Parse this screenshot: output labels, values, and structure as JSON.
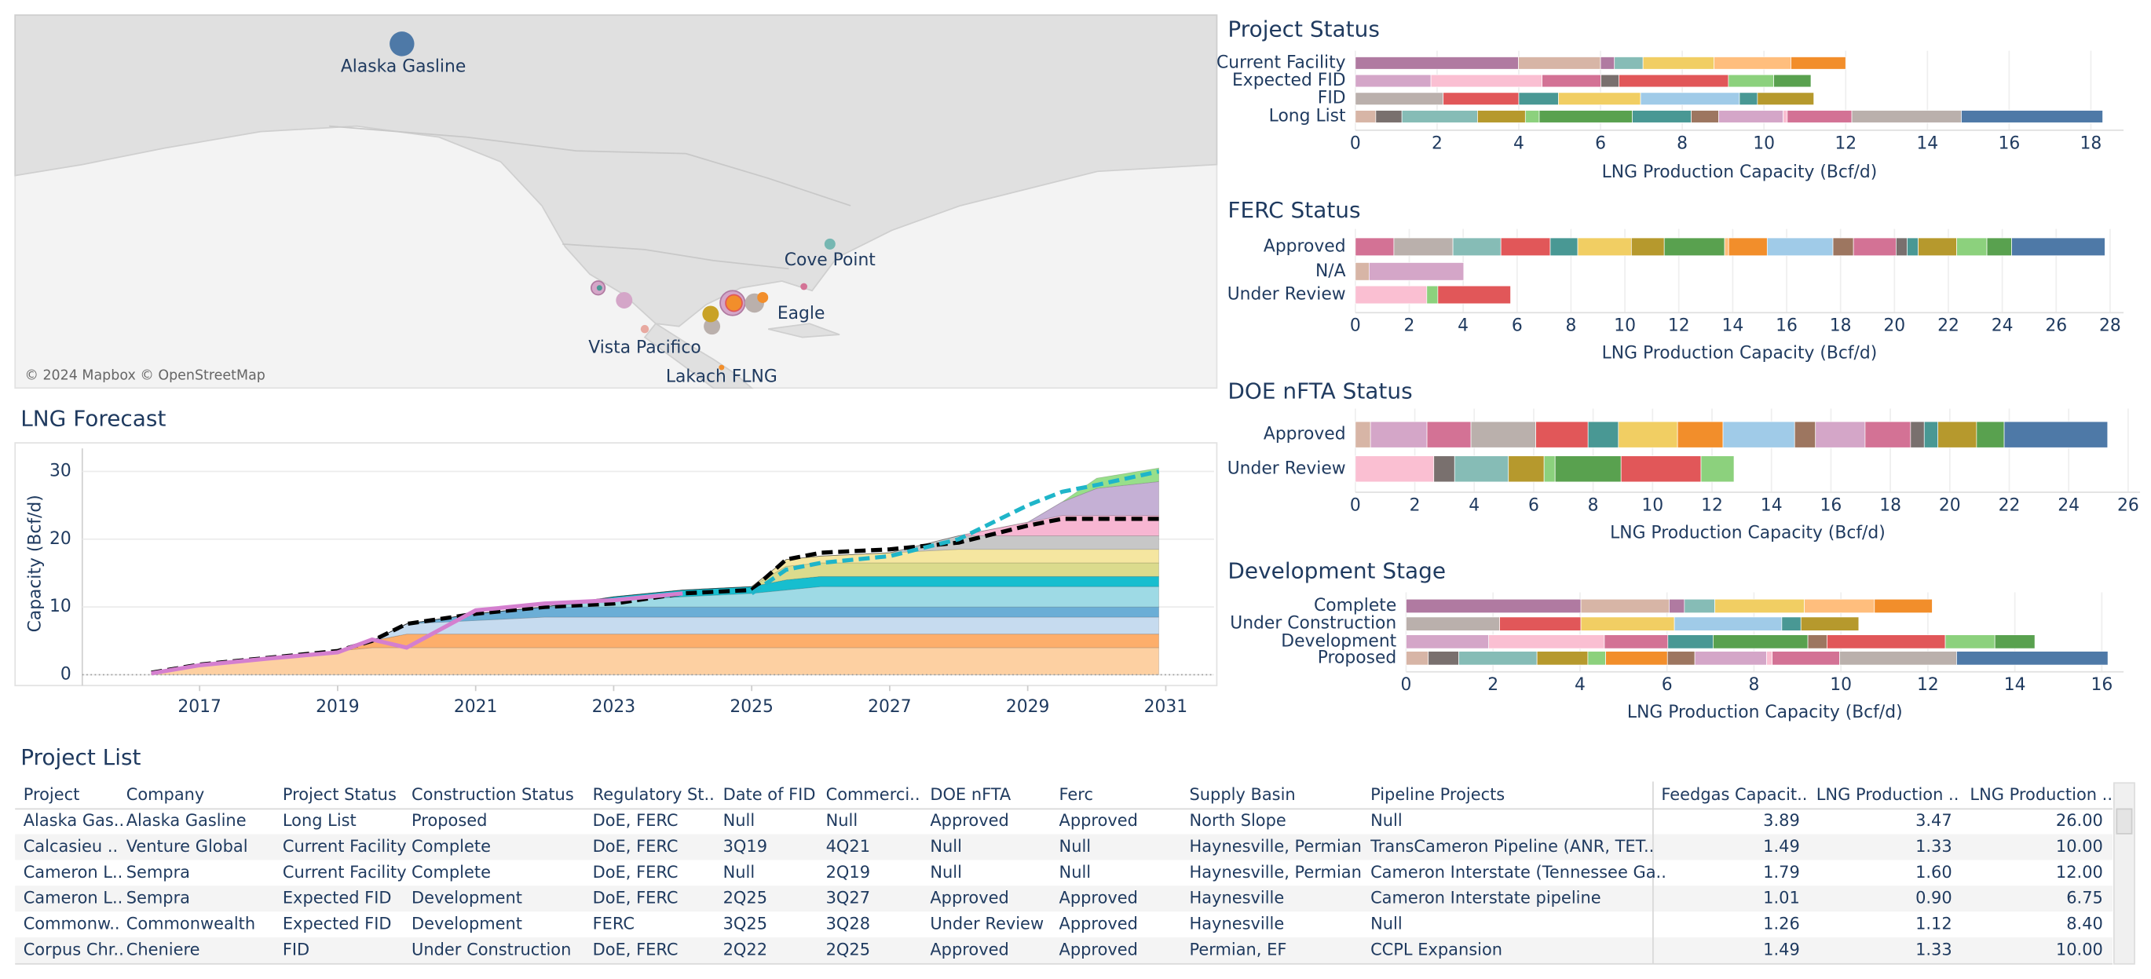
{
  "map": {
    "labels": [
      "Alaska Gasline",
      "Cove Point",
      "Eagle",
      "Vista Pacifico",
      "Lakach FLNG"
    ],
    "attribution": "© 2024 Mapbox © OpenStreetMap"
  },
  "chart_data": [
    {
      "type": "area",
      "title": "LNG Forecast",
      "y_label": "Capacity (Bcf/d)",
      "grid": true,
      "x": [
        2016.3,
        2017,
        2018,
        2019,
        2019.5,
        2020,
        2021,
        2022,
        2023,
        2024,
        2025,
        2025.5,
        2026,
        2027,
        2028,
        2029,
        2029.5,
        2030,
        2030.9
      ],
      "xlim": [
        2015.3,
        2031.7
      ],
      "xticks": [
        2017,
        2019,
        2021,
        2023,
        2025,
        2027,
        2029,
        2031
      ],
      "ylim": [
        -1.6,
        33.4
      ],
      "yticks": [
        0,
        10,
        20,
        30
      ],
      "series": [
        {
          "color": "#fdd0a2",
          "values": [
            0.3,
            1.5,
            2.5,
            3.5,
            4,
            4,
            4,
            4,
            4,
            4,
            4,
            4,
            4,
            4,
            4,
            4,
            4,
            4,
            4
          ]
        },
        {
          "color": "#fdae6b",
          "values": [
            0,
            0,
            0,
            0,
            1,
            2,
            2,
            2,
            2,
            2,
            2,
            2,
            2,
            2,
            2,
            2,
            2,
            2,
            2
          ]
        },
        {
          "color": "#c6dbef",
          "values": [
            0,
            0,
            0,
            0,
            0,
            1.5,
            2,
            2.5,
            2.5,
            2.5,
            2.5,
            2.5,
            2.5,
            2.5,
            2.5,
            2.5,
            2.5,
            2.5,
            2.5
          ]
        },
        {
          "color": "#6baed6",
          "values": [
            0,
            0,
            0,
            0,
            0,
            0,
            1,
            1.5,
            1.5,
            1.5,
            1.5,
            1.5,
            1.5,
            1.5,
            1.5,
            1.5,
            1.5,
            1.5,
            1.5
          ]
        },
        {
          "color": "#9edae5",
          "values": [
            0,
            0,
            0,
            0,
            0,
            0,
            0,
            0,
            1,
            1.5,
            2,
            2.5,
            3,
            3,
            3,
            3,
            3,
            3,
            3
          ]
        },
        {
          "color": "#17becf",
          "values": [
            0,
            0,
            0,
            0,
            0,
            0,
            0,
            0,
            0.5,
            1,
            1,
            1.5,
            1.5,
            1.5,
            1.5,
            1.5,
            1.5,
            1.5,
            1.5
          ]
        },
        {
          "color": "#dbdb8d",
          "values": [
            0,
            0,
            0,
            0,
            0,
            0,
            0,
            0,
            0,
            0,
            0,
            2,
            2,
            2,
            2,
            2,
            2,
            2,
            2
          ]
        },
        {
          "color": "#f5e6a0",
          "values": [
            0,
            0,
            0,
            0,
            0,
            0,
            0,
            0,
            0,
            0,
            0,
            1,
            1,
            1.5,
            2,
            2,
            2,
            2,
            2
          ]
        },
        {
          "color": "#c7c7c7",
          "values": [
            0,
            0,
            0,
            0,
            0,
            0,
            0,
            0,
            0,
            0,
            0,
            0,
            0,
            0,
            2,
            2,
            2,
            2,
            2
          ]
        },
        {
          "color": "#f7b6d2",
          "values": [
            0,
            0,
            0,
            0,
            0,
            0,
            0,
            0,
            0,
            0,
            0,
            0,
            0,
            0,
            0,
            2,
            3,
            3,
            3
          ]
        },
        {
          "color": "#c5b0d5",
          "values": [
            0,
            0,
            0,
            0,
            0,
            0,
            0,
            0,
            0,
            0,
            0,
            0,
            0,
            0,
            0,
            0,
            2,
            4,
            5
          ]
        },
        {
          "color": "#98df8a",
          "values": [
            0,
            0,
            0,
            0,
            0,
            0,
            0,
            0,
            0,
            0,
            0,
            0,
            0,
            0,
            0,
            0,
            0,
            1.5,
            2
          ]
        }
      ],
      "lines": [
        {
          "color": "#000000",
          "dash": true,
          "values": [
            0.3,
            1.5,
            2.5,
            3.5,
            5,
            7.5,
            9,
            10,
            10.5,
            12,
            12.5,
            17,
            18,
            18.5,
            19.5,
            22,
            23,
            23,
            23
          ]
        },
        {
          "color": "#1fb5c9",
          "dash": true,
          "values": [
            null,
            null,
            null,
            null,
            null,
            null,
            null,
            null,
            null,
            null,
            12,
            15.5,
            16.5,
            17.5,
            20,
            25,
            27,
            28,
            30
          ]
        },
        {
          "color": "#d47fcf",
          "dash": false,
          "values": [
            0.2,
            1.4,
            2.4,
            3.3,
            5.2,
            4,
            9.5,
            10.5,
            11,
            12,
            null,
            null,
            null,
            null,
            null,
            null,
            null,
            null,
            null
          ]
        }
      ]
    },
    {
      "type": "stacked_hbar",
      "title": "Project Status",
      "x_label": "LNG Production Capacity (Bcf/d)",
      "grid": true,
      "categories": [
        "Current Facility",
        "Expected FID",
        "FID",
        "Long List"
      ],
      "xlim": [
        0,
        18.8
      ],
      "xticks": [
        0,
        2,
        4,
        6,
        8,
        10,
        12,
        14,
        16,
        18
      ],
      "values": [
        [
          3.99,
          2.01,
          0.34,
          0.7,
          1.74,
          1.88,
          1.34
        ],
        [
          1.85,
          2.72,
          1.44,
          0.44,
          2.68,
          1.11,
          0.91
        ],
        [
          2.15,
          1.85,
          0.97,
          2.01,
          2.42,
          0.44,
          1.38
        ],
        [
          0.5,
          0.64,
          1.85,
          1.17,
          0.34,
          2.28,
          1.44,
          0.67,
          1.58,
          0.1,
          1.58,
          2.68,
          3.46
        ]
      ],
      "colors": [
        [
          "#b07aa1",
          "#d7b5a6",
          "#b07aa1",
          "#86bcb6",
          "#f1ce63",
          "#ffbe7d",
          "#f28e2b"
        ],
        [
          "#d4a6c8",
          "#fabfd2",
          "#d37295",
          "#79706e",
          "#e15759",
          "#8cd17d",
          "#59a14f"
        ],
        [
          "#bab0ac",
          "#e15759",
          "#499894",
          "#f1ce63",
          "#a0cbe8",
          "#499894",
          "#b6992d"
        ],
        [
          "#d7b5a6",
          "#79706e",
          "#86bcb6",
          "#b6992d",
          "#8cd17d",
          "#59a14f",
          "#499894",
          "#9d7660",
          "#d4a6c8",
          "#fabfd2",
          "#d37295",
          "#bab0ac",
          "#4e79a7"
        ]
      ]
    },
    {
      "type": "stacked_hbar",
      "title": "FERC Status",
      "x_label": "LNG Production Capacity (Bcf/d)",
      "grid": true,
      "categories": [
        "Approved",
        "N/A",
        "Under Review"
      ],
      "xlim": [
        0,
        28.5
      ],
      "xticks": [
        0,
        2,
        4,
        6,
        8,
        10,
        12,
        14,
        16,
        18,
        20,
        22,
        24,
        26,
        28
      ],
      "values": [
        [
          1.43,
          2.19,
          1.78,
          1.83,
          1.02,
          1.99,
          1.22,
          2.24,
          0.15,
          1.43,
          2.44,
          0.76,
          1.58,
          0.41,
          0.41,
          1.43,
          1.12,
          0.92,
          3.46
        ],
        [
          0.51,
          3.51
        ],
        [
          2.65,
          0.41,
          2.7
        ]
      ],
      "colors": [
        [
          "#d37295",
          "#bab0ac",
          "#86bcb6",
          "#e15759",
          "#499894",
          "#f1ce63",
          "#b6992d",
          "#59a14f",
          "#ffbe7d",
          "#f28e2b",
          "#a0cbe8",
          "#9d7660",
          "#d37295",
          "#79706e",
          "#499894",
          "#b6992d",
          "#8cd17d",
          "#59a14f",
          "#4e79a7"
        ],
        [
          "#d7b5a6",
          "#d4a6c8"
        ],
        [
          "#fabfd2",
          "#8cd17d",
          "#e15759"
        ]
      ]
    },
    {
      "type": "stacked_hbar",
      "title": "DOE nFTA Status",
      "x_label": "LNG Production Capacity (Bcf/d)",
      "grid": true,
      "categories": [
        "Approved",
        "Under Review"
      ],
      "xlim": [
        0,
        26.4
      ],
      "xticks": [
        0,
        2,
        4,
        6,
        8,
        10,
        12,
        14,
        16,
        18,
        20,
        22,
        24,
        26
      ],
      "values": [
        [
          0.51,
          1.9,
          1.48,
          2.18,
          1.76,
          1.02,
          1.99,
          1.53,
          2.41,
          0.7,
          1.67,
          1.53,
          0.46,
          0.46,
          1.3,
          0.93,
          3.48
        ],
        [
          2.64,
          0.7,
          1.81,
          1.2,
          0.37,
          2.22,
          2.69,
          1.11
        ]
      ],
      "colors": [
        [
          "#d7b5a6",
          "#d4a6c8",
          "#d37295",
          "#bab0ac",
          "#e15759",
          "#499894",
          "#f1ce63",
          "#f28e2b",
          "#a0cbe8",
          "#9d7660",
          "#d4a6c8",
          "#d37295",
          "#79706e",
          "#499894",
          "#b6992d",
          "#59a14f",
          "#4e79a7"
        ],
        [
          "#fabfd2",
          "#79706e",
          "#86bcb6",
          "#b6992d",
          "#8cd17d",
          "#59a14f",
          "#e15759",
          "#8cd17d"
        ]
      ]
    },
    {
      "type": "stacked_hbar",
      "title": "Development Stage",
      "x_label": "LNG Production Capacity (Bcf/d)",
      "grid": true,
      "categories": [
        "Complete",
        "Under Construction",
        "Development",
        "Proposed"
      ],
      "xlim": [
        0,
        16.5
      ],
      "xticks": [
        0,
        2,
        4,
        6,
        8,
        10,
        12,
        14,
        16
      ],
      "values": [
        [
          4.02,
          2.03,
          0.35,
          0.7,
          2.06,
          1.61,
          1.33
        ],
        [
          2.15,
          1.87,
          2.15,
          2.47,
          0.44,
          1.33
        ],
        [
          1.9,
          2.66,
          1.46,
          1.04,
          2.18,
          0.44,
          2.72,
          1.14,
          0.92
        ],
        [
          0.51,
          0.7,
          1.8,
          1.17,
          0.41,
          1.42,
          0.63,
          1.65,
          0.13,
          1.55,
          2.69,
          3.48
        ]
      ],
      "colors": [
        [
          "#b07aa1",
          "#d7b5a6",
          "#b07aa1",
          "#86bcb6",
          "#f1ce63",
          "#ffbe7d",
          "#f28e2b"
        ],
        [
          "#bab0ac",
          "#e15759",
          "#f1ce63",
          "#a0cbe8",
          "#499894",
          "#b6992d"
        ],
        [
          "#d4a6c8",
          "#fabfd2",
          "#d37295",
          "#499894",
          "#59a14f",
          "#9d7660",
          "#e15759",
          "#8cd17d",
          "#59a14f"
        ],
        [
          "#d7b5a6",
          "#79706e",
          "#86bcb6",
          "#b6992d",
          "#8cd17d",
          "#f28e2b",
          "#9d7660",
          "#d4a6c8",
          "#fabfd2",
          "#d37295",
          "#bab0ac",
          "#4e79a7"
        ]
      ]
    }
  ],
  "table": {
    "title": "Project List",
    "columns": [
      "Project",
      "Company",
      "Project Status",
      "Construction Status",
      "Regulatory St..",
      "Date of FID",
      "Commerci..",
      "DOE nFTA",
      "Ferc",
      "Supply Basin",
      "Pipeline Projects",
      "Feedgas Capacit..",
      "LNG Production ..",
      "LNG Production .."
    ],
    "rows": [
      [
        "Alaska Gas..",
        "Alaska Gasline",
        "Long List",
        "Proposed",
        "DoE, FERC",
        "Null",
        "Null",
        "Approved",
        "Approved",
        "North Slope",
        "Null",
        "3.89",
        "3.47",
        "26.00"
      ],
      [
        "Calcasieu ..",
        "Venture Global",
        "Current Facility",
        "Complete",
        "DoE, FERC",
        "3Q19",
        "4Q21",
        "Null",
        "Null",
        "Haynesville, Permian",
        "TransCameron Pipeline (ANR, TET..",
        "1.49",
        "1.33",
        "10.00"
      ],
      [
        "Cameron L..",
        "Sempra",
        "Current Facility",
        "Complete",
        "DoE, FERC",
        "Null",
        "2Q19",
        "Null",
        "Null",
        "Haynesville, Permian",
        "Cameron Interstate (Tennessee Ga..",
        "1.79",
        "1.60",
        "12.00"
      ],
      [
        "Cameron L..",
        "Sempra",
        "Expected FID",
        "Development",
        "DoE, FERC",
        "2Q25",
        "3Q27",
        "Approved",
        "Approved",
        "Haynesville",
        "Cameron Interstate pipeline",
        "1.01",
        "0.90",
        "6.75"
      ],
      [
        "Commonw..",
        "Commonwealth",
        "Expected FID",
        "Development",
        "FERC",
        "3Q25",
        "3Q28",
        "Under Review",
        "Approved",
        "Haynesville",
        "Null",
        "1.26",
        "1.12",
        "8.40"
      ],
      [
        "Corpus Chr..",
        "Cheniere",
        "FID",
        "Under Construction",
        "DoE, FERC",
        "2Q22",
        "2Q25",
        "Approved",
        "Approved",
        "Permian, EF",
        "CCPL Expansion",
        "1.49",
        "1.33",
        "10.00"
      ]
    ]
  }
}
